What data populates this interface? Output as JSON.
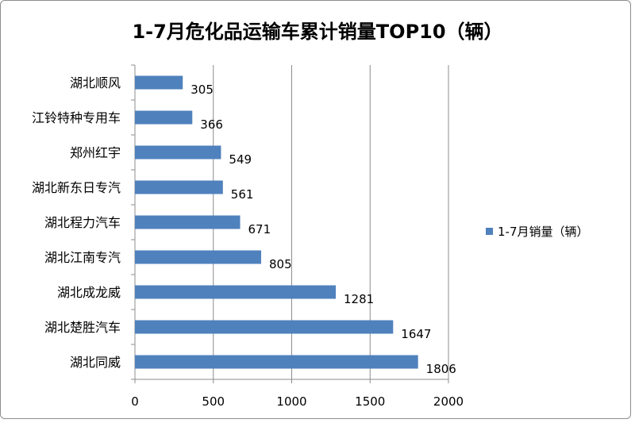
{
  "chart_data": {
    "type": "bar",
    "orientation": "horizontal",
    "title": "1-7月危化品运输车累计销量TOP10（辆）",
    "categories": [
      "湖北顺风",
      "江铃特种专用车",
      "郑州红宇",
      "湖北新东日专汽",
      "湖北程力汽车",
      "湖北江南专汽",
      "湖北成龙威",
      "湖北楚胜汽车",
      "湖北同威"
    ],
    "series": [
      {
        "name": "1-7月销量（辆）",
        "values": [
          305,
          366,
          549,
          561,
          671,
          805,
          1281,
          1647,
          1806
        ],
        "color": "#4f81bd"
      }
    ],
    "xlim": [
      0,
      2000
    ],
    "x_ticks": [
      0,
      500,
      1000,
      1500,
      2000
    ],
    "grid": "vertical",
    "legend_position": "right",
    "data_labels": [
      "305",
      "366",
      "549",
      "561",
      "671",
      "805",
      "1281",
      "1647",
      "1806"
    ]
  }
}
